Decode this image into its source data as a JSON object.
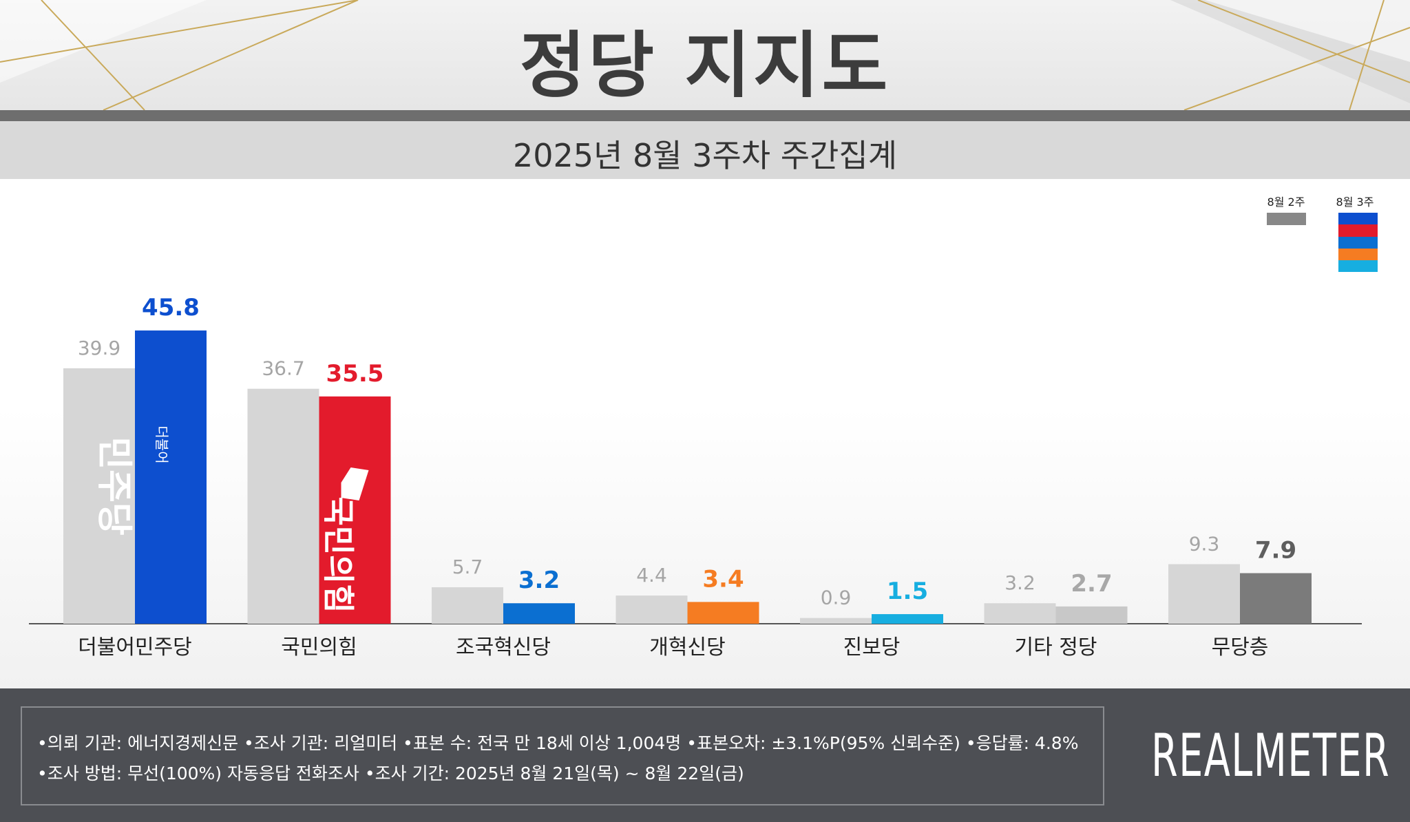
{
  "title": "정당 지지도",
  "subtitle": "2025년 8월 3주차 주간집계",
  "legend": {
    "prev": "8월 2주",
    "curr": "8월 3주",
    "prev_color": "#888888",
    "curr_colors": [
      "#0d4fcf",
      "#e31b2c",
      "#0b6fd1",
      "#f57c22",
      "#17aee0"
    ]
  },
  "chart_data": {
    "type": "bar",
    "categories": [
      "더불어민주당",
      "국민의힘",
      "조국혁신당",
      "개혁신당",
      "진보당",
      "기타 정당",
      "무당층"
    ],
    "series": [
      {
        "name": "8월 2주",
        "values": [
          39.9,
          36.7,
          5.7,
          4.4,
          0.9,
          3.2,
          9.3
        ]
      },
      {
        "name": "8월 3주",
        "values": [
          45.8,
          35.5,
          3.2,
          3.4,
          1.5,
          2.7,
          7.9
        ]
      }
    ],
    "colors_prev": [
      "#d6d6d6",
      "#d6d6d6",
      "#d6d6d6",
      "#d6d6d6",
      "#d6d6d6",
      "#d6d6d6",
      "#d6d6d6"
    ],
    "colors_curr": [
      "#0d4fcf",
      "#e31b2c",
      "#0b6fd1",
      "#f57c22",
      "#17aee0",
      "#c8c8c8",
      "#7b7b7b"
    ],
    "label_colors_curr": [
      "#0d4fcf",
      "#e31b2c",
      "#0b6fd1",
      "#f57c22",
      "#17aee0",
      "#a8a8a8",
      "#5e5e5e"
    ],
    "label_color_prev": "#a5a5a5",
    "bar_logos": {
      "0": "민주당",
      "1": "국민의힘"
    },
    "bar_logo_small": "더불어",
    "ylim": [
      0,
      50
    ]
  },
  "footer": {
    "line1": "•의뢰 기관: 에너지경제신문  •조사 기관: 리얼미터 •표본 수: 전국 만 18세 이상 1,004명 •표본오차: ±3.1%P(95% 신뢰수준) •응답률: 4.8%",
    "line2": "•조사 방법: 무선(100%) 자동응답 전화조사 •조사 기간: 2025년 8월 21일(목) ~ 8월 22일(금)",
    "brand": "REALMETER"
  }
}
